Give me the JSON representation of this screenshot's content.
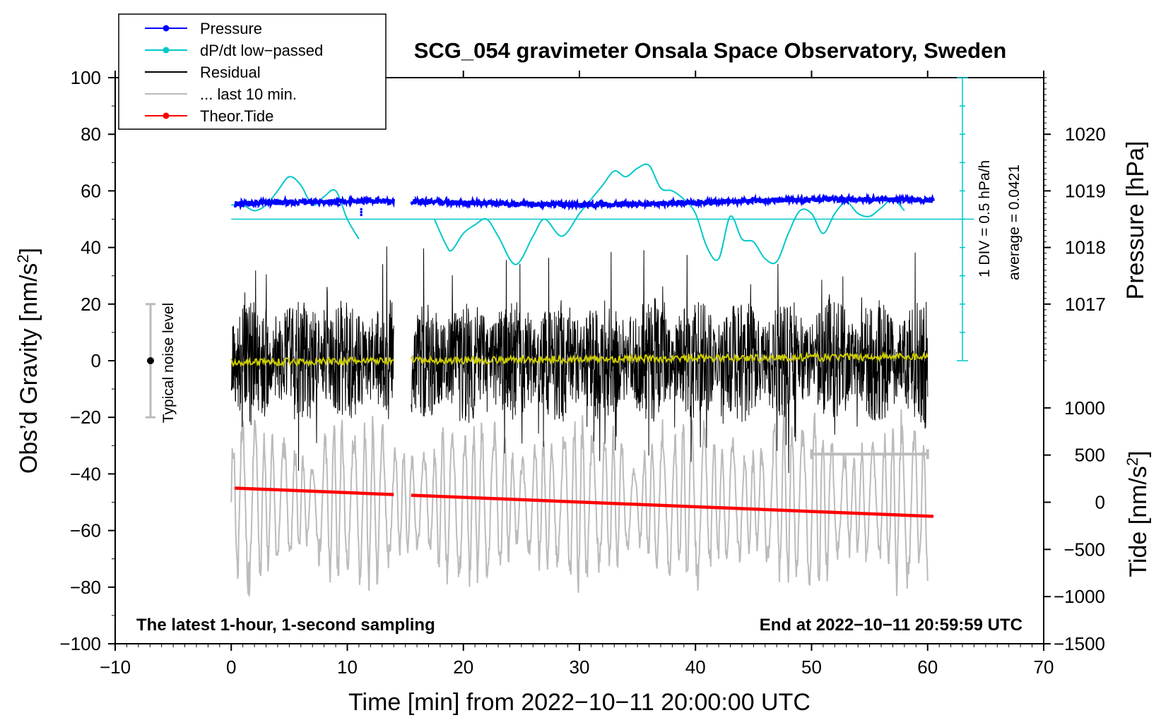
{
  "chart_data": {
    "type": "line",
    "title": "SCG_054 gravimeter Onsala Space Observatory, Sweden",
    "xlabel": "Time [min] from 2022−10−11 20:00:00 UTC",
    "ylabel_left_main": "Obs’d Gravity [nm/s",
    "ylabel_left_sup": "2",
    "ylabel_left_end": "]",
    "ylabel_right_pressure": "Pressure [hPa]",
    "ylabel_right_tide_main": "Tide [nm/s",
    "ylabel_right_tide_sup": "2",
    "ylabel_right_tide_end": "]",
    "xlim": [
      -10,
      70
    ],
    "ylim_gravity": [
      -100,
      100
    ],
    "x_ticks": [
      "−10",
      "0",
      "10",
      "20",
      "30",
      "40",
      "50",
      "60",
      "70"
    ],
    "y_ticks": [
      "100",
      "80",
      "60",
      "40",
      "20",
      "0",
      "−20",
      "−40",
      "−60",
      "−80",
      "−100"
    ],
    "pressure_ticks": [
      "1020",
      "1019",
      "1018",
      "1017"
    ],
    "tide_ticks": [
      "1000",
      "500",
      "0",
      "−500",
      "−1000",
      "−1500"
    ],
    "bottom_left_note": "The latest 1-hour, 1-second sampling",
    "bottom_right_note": "End at 2022−10−11 20:59:59 UTC",
    "noise_label": "Typical noise level",
    "noise_range": [
      -20,
      20
    ],
    "dpdt_scale_label": "1 DIV = 0.5 hPa/h",
    "dpdt_average_label": "average = 0.0421",
    "legend": [
      {
        "label": "Pressure",
        "color": "#0000ff",
        "marker": true
      },
      {
        "label": "dP/dt low−passed",
        "color": "#00c8c8",
        "marker": true
      },
      {
        "label": "Residual",
        "color": "#000000",
        "marker": false
      },
      {
        "label": "... last 10 min.",
        "color": "#bbbbbb",
        "marker": false
      },
      {
        "label": "Theor.Tide",
        "color": "#ff0000",
        "marker": true
      }
    ],
    "series": [
      {
        "name": "Pressure",
        "axis": "gravity-equivalent",
        "segments": [
          [
            0.3,
            14
          ],
          [
            15.5,
            60.5
          ]
        ],
        "start": 55.4,
        "end": 56.4,
        "noise": 0.9
      },
      {
        "name": "dP/dt low-passed",
        "axis": "gravity-equivalent",
        "x": [
          0,
          1,
          2,
          3,
          4,
          5,
          6,
          7,
          8,
          9,
          10,
          11,
          null,
          17.5,
          18.5,
          19,
          20,
          21,
          22,
          23,
          24.5,
          26,
          27,
          28.5,
          30,
          31,
          32,
          33,
          34,
          35,
          36,
          37,
          38,
          39,
          40,
          41,
          42,
          43,
          44,
          45,
          46,
          47,
          48,
          49,
          50,
          51,
          52,
          53,
          54,
          55,
          56,
          57,
          58
        ],
        "y": [
          55,
          55,
          53,
          55,
          60,
          65,
          62,
          55,
          58,
          60,
          50,
          43,
          null,
          50,
          41,
          39,
          45,
          48,
          50,
          44,
          34,
          44,
          50,
          44,
          52,
          57,
          62,
          67,
          65,
          68,
          69,
          61,
          60,
          57,
          52,
          40,
          36,
          51,
          43,
          42,
          36,
          35,
          45,
          53,
          52,
          45,
          52,
          56,
          52,
          51,
          54,
          57,
          53
        ]
      },
      {
        "name": "Residual",
        "segments": [
          [
            0,
            14
          ],
          [
            15.5,
            60
          ]
        ],
        "mean": 0,
        "amplitude": 22
      },
      {
        "name": "Residual smoothed",
        "color": "#cccc00",
        "segments": [
          [
            0,
            14
          ],
          [
            15.5,
            60
          ]
        ],
        "start": -0.5,
        "end": 1.5
      },
      {
        "name": "... last 10 min.",
        "axis": "tide",
        "x_range": [
          0,
          60
        ],
        "amplitude_nm_s2": 700
      },
      {
        "name": "Theor.Tide",
        "axis": "gravity-equivalent",
        "segments": [
          [
            0.3,
            14
          ],
          [
            15.5,
            60.5
          ]
        ],
        "start": -45,
        "end": -55
      },
      {
        "name": "10-min marker",
        "x": [
          50,
          60
        ],
        "y": -33
      }
    ]
  }
}
